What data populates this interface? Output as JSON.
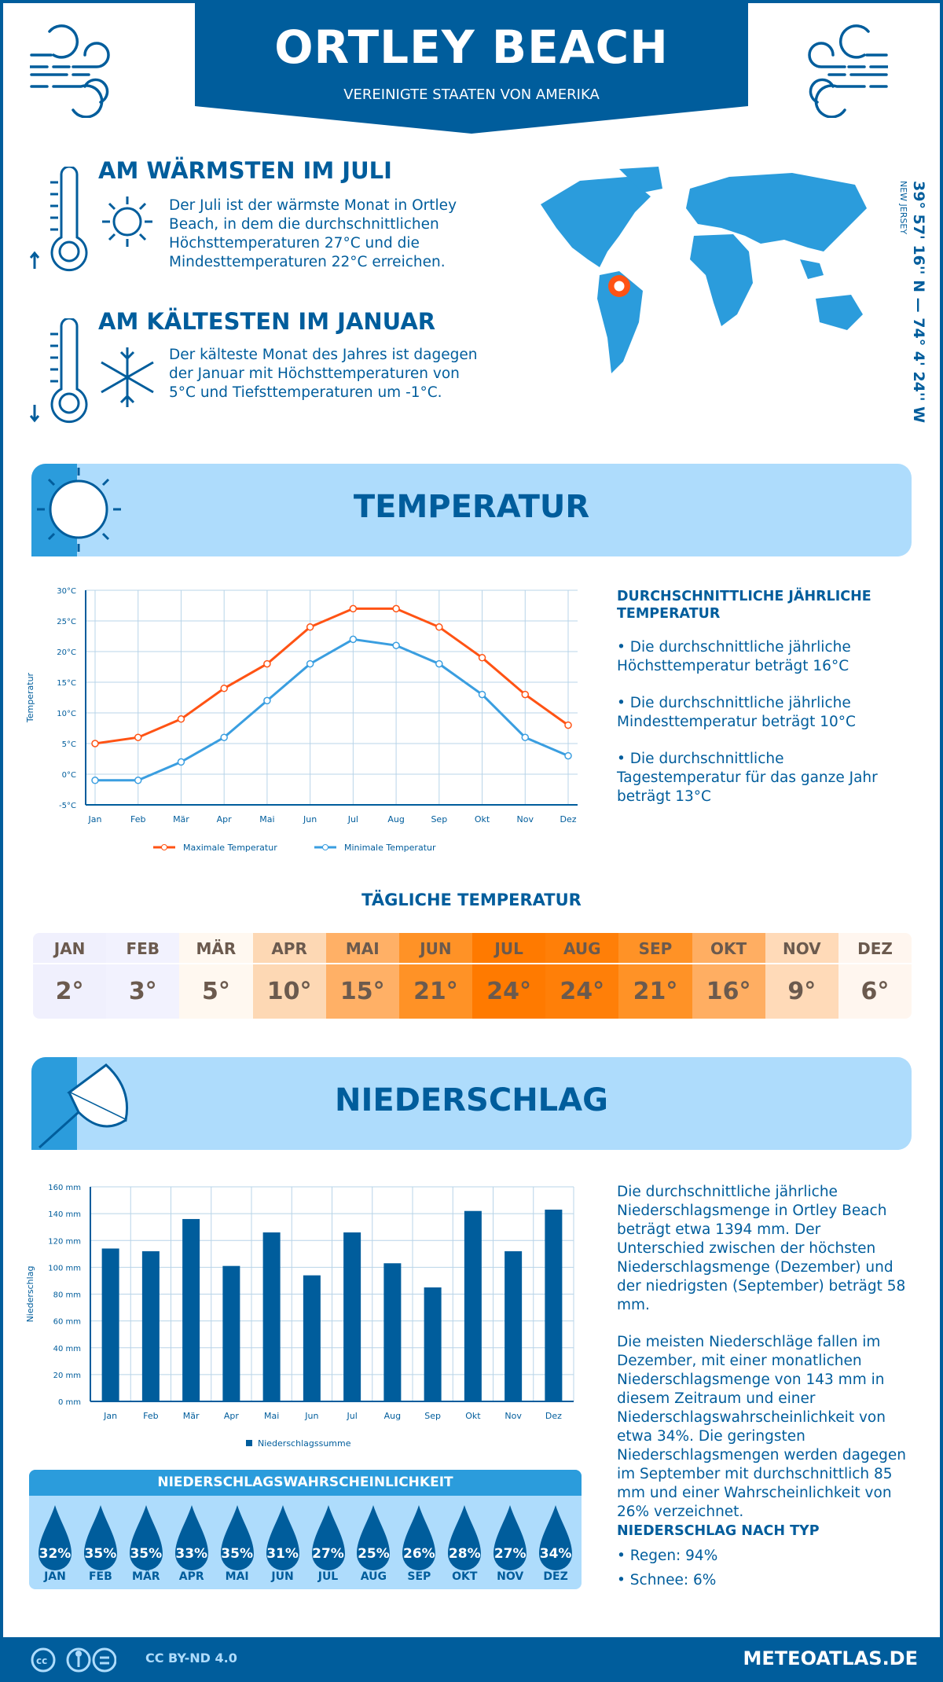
{
  "header": {
    "title": "ORTLEY BEACH",
    "subtitle": "VEREINIGTE STAATEN VON AMERIKA"
  },
  "warmest": {
    "heading": "AM WÄRMSTEN IM JULI",
    "text": "Der Juli ist der wärmste Monat in Ortley Beach, in dem die durchschnittlichen Höchsttemperaturen 27°C und die Mindesttemperaturen 22°C erreichen."
  },
  "coldest": {
    "heading": "AM KÄLTESTEN IM JANUAR",
    "text": "Der kälteste Monat des Jahres ist dagegen der Januar mit Höchsttemperaturen von 5°C und Tiefsttemperaturen um -1°C."
  },
  "location": {
    "coords": "39° 57' 16'' N — 74° 4' 24'' W",
    "region": "NEW JERSEY"
  },
  "temperature": {
    "section_title": "TEMPERATUR",
    "summary_heading": "DURCHSCHNITTLICHE JÄHRLICHE TEMPERATUR",
    "bullets": [
      "• Die durchschnittliche jährliche Höchsttemperatur beträgt 16°C",
      "• Die durchschnittliche jährliche Mindesttemperatur beträgt 10°C",
      "• Die durchschnittliche Tagestemperatur für das ganze Jahr beträgt 13°C"
    ]
  },
  "daily": {
    "heading": "TÄGLICHE TEMPERATUR",
    "months": [
      "JAN",
      "FEB",
      "MÄR",
      "APR",
      "MAI",
      "JUN",
      "JUL",
      "AUG",
      "SEP",
      "OKT",
      "NOV",
      "DEZ"
    ],
    "values": [
      "2°",
      "3°",
      "5°",
      "10°",
      "15°",
      "21°",
      "24°",
      "24°",
      "21°",
      "16°",
      "9°",
      "6°"
    ],
    "colors": [
      "#f0f0fd",
      "#f2f2fe",
      "#fff8f0",
      "#fdd8b4",
      "#ffb066",
      "#ff9226",
      "#ff7a00",
      "#ff7f08",
      "#ff9226",
      "#ffae62",
      "#ffdab8",
      "#fff6ef"
    ]
  },
  "precipitation": {
    "section_title": "NIEDERSCHLAG",
    "text1": "Die durchschnittliche jährliche Niederschlagsmenge in Ortley Beach beträgt etwa 1394 mm. Der Unterschied zwischen der höchsten Niederschlagsmenge (Dezember) und der niedrigsten (September) beträgt 58 mm.",
    "text2": "Die meisten Niederschläge fallen im Dezember, mit einer monatlichen Niederschlagsmenge von 143 mm in diesem Zeitraum und einer Niederschlagswahrscheinlichkeit von etwa 34%. Die geringsten Niederschlagsmengen werden dagegen im September mit durchschnittlich 85 mm und einer Wahrscheinlichkeit von 26% verzeichnet.",
    "type_heading": "NIEDERSCHLAG NACH TYP",
    "types": [
      "• Regen: 94%",
      "• Schnee: 6%"
    ]
  },
  "probability": {
    "heading": "NIEDERSCHLAGSWAHRSCHEINLICHKEIT",
    "months": [
      "JAN",
      "FEB",
      "MÄR",
      "APR",
      "MAI",
      "JUN",
      "JUL",
      "AUG",
      "SEP",
      "OKT",
      "NOV",
      "DEZ"
    ],
    "values": [
      "32%",
      "35%",
      "35%",
      "33%",
      "35%",
      "31%",
      "27%",
      "25%",
      "26%",
      "28%",
      "27%",
      "34%"
    ]
  },
  "footer": {
    "license": "CC BY-ND 4.0",
    "site": "METEOATLAS.DE"
  },
  "colors": {
    "primary": "#005d9c",
    "accent": "#2b9cdc",
    "light": "#aedcfc",
    "max_line": "#ff5314",
    "min_line": "#3a9ee0"
  },
  "chart_data": [
    {
      "type": "line",
      "categories": [
        "Jan",
        "Feb",
        "Mär",
        "Apr",
        "Mai",
        "Jun",
        "Jul",
        "Aug",
        "Sep",
        "Okt",
        "Nov",
        "Dez"
      ],
      "ylabel": "Temperatur",
      "ylim": [
        -5,
        30
      ],
      "yticks": [
        "-5°C",
        "0°C",
        "5°C",
        "10°C",
        "15°C",
        "20°C",
        "25°C",
        "30°C"
      ],
      "grid": true,
      "legend": "bottom",
      "series": [
        {
          "name": "Maximale Temperatur",
          "values": [
            5,
            6,
            9,
            14,
            18,
            24,
            27,
            27,
            24,
            19,
            13,
            8
          ],
          "color": "#ff5314"
        },
        {
          "name": "Minimale Temperatur",
          "values": [
            -1,
            -1,
            2,
            6,
            12,
            18,
            22,
            21,
            18,
            13,
            6,
            3
          ],
          "color": "#3a9ee0"
        }
      ]
    },
    {
      "type": "bar",
      "categories": [
        "Jan",
        "Feb",
        "Mär",
        "Apr",
        "Mai",
        "Jun",
        "Jul",
        "Aug",
        "Sep",
        "Okt",
        "Nov",
        "Dez"
      ],
      "ylabel": "Niederschlag",
      "ylim": [
        0,
        160
      ],
      "yticks": [
        "0 mm",
        "20 mm",
        "40 mm",
        "60 mm",
        "80 mm",
        "100 mm",
        "120 mm",
        "140 mm",
        "160 mm"
      ],
      "grid": true,
      "legend": "bottom",
      "series": [
        {
          "name": "Niederschlagssumme",
          "values": [
            114,
            112,
            136,
            101,
            126,
            94,
            126,
            103,
            85,
            142,
            112,
            143
          ],
          "color": "#005d9c"
        }
      ]
    }
  ]
}
